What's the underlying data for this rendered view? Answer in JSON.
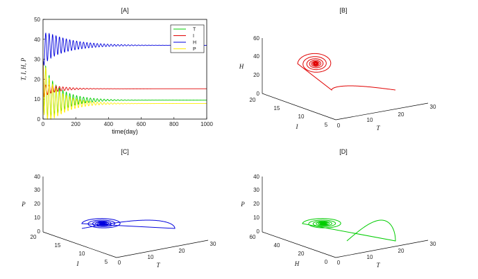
{
  "chart_data": [
    {
      "id": "A",
      "type": "line",
      "title": "[A]",
      "xlabel": "time(day)",
      "ylabel": "T, I, H, P",
      "xlim": [
        0,
        1000
      ],
      "ylim": [
        0,
        50
      ],
      "xticks": [
        "0",
        "200",
        "400",
        "600",
        "800",
        "1000"
      ],
      "yticks": [
        "0",
        "10",
        "20",
        "30",
        "40",
        "50"
      ],
      "legend_position": "top-right",
      "series": [
        {
          "name": "T",
          "color": "#00cc00",
          "equilibrium": 9.5,
          "first_peak": 30,
          "first_trough": 2,
          "decay_days": 110,
          "period_days": 21
        },
        {
          "name": "I",
          "color": "#e00000",
          "equilibrium": 15.2,
          "first_peak": 17,
          "first_trough": 11,
          "decay_days": 100,
          "period_days": 21
        },
        {
          "name": "H",
          "color": "#0000dd",
          "equilibrium": 37,
          "first_peak": 43,
          "first_trough": 27,
          "decay_days": 150,
          "period_days": 21
        },
        {
          "name": "P",
          "color": "#ffee00",
          "equilibrium": 7.8,
          "first_peak": 30,
          "first_trough": 2,
          "decay_days": 110,
          "period_days": 21
        }
      ]
    },
    {
      "id": "B",
      "type": "line",
      "title": "[B]",
      "xlabel": "T",
      "ylabel": "I",
      "zlabel": "H",
      "xticks": [
        "0",
        "10",
        "20",
        "30"
      ],
      "yticks": [
        "5",
        "10",
        "15",
        "20"
      ],
      "zticks": [
        "0",
        "20",
        "40",
        "60"
      ],
      "xlim": [
        0,
        30
      ],
      "ylim": [
        5,
        20
      ],
      "zlim": [
        0,
        60
      ],
      "color": "#e00000",
      "equilibrium": {
        "T": 9.5,
        "I": 15.2,
        "H": 37
      },
      "start": {
        "T": 21,
        "I": 10,
        "H": 30
      }
    },
    {
      "id": "C",
      "type": "line",
      "title": "[C]",
      "xlabel": "T",
      "ylabel": "I",
      "zlabel": "P",
      "xticks": [
        "0",
        "10",
        "20",
        "30"
      ],
      "yticks": [
        "5",
        "10",
        "15",
        "20"
      ],
      "zticks": [
        "0",
        "10",
        "20",
        "30",
        "40"
      ],
      "xlim": [
        0,
        30
      ],
      "ylim": [
        5,
        20
      ],
      "zlim": [
        0,
        40
      ],
      "color": "#0000dd",
      "equilibrium": {
        "T": 9.5,
        "I": 15.2,
        "P": 7.8
      },
      "start": {
        "T": 21,
        "I": 10,
        "P": 30
      }
    },
    {
      "id": "D",
      "type": "line",
      "title": "[D]",
      "xlabel": "T",
      "ylabel": "H",
      "zlabel": "P",
      "xticks": [
        "0",
        "10",
        "20",
        "30"
      ],
      "yticks": [
        "0",
        "20",
        "40",
        "60"
      ],
      "zticks": [
        "0",
        "10",
        "20",
        "30",
        "40"
      ],
      "xlim": [
        0,
        30
      ],
      "ylim": [
        0,
        60
      ],
      "zlim": [
        0,
        40
      ],
      "color": "#00cc00",
      "equilibrium": {
        "T": 9.5,
        "H": 37,
        "P": 7.8
      },
      "start": {
        "T": 21,
        "H": 30,
        "P": 30
      }
    }
  ]
}
